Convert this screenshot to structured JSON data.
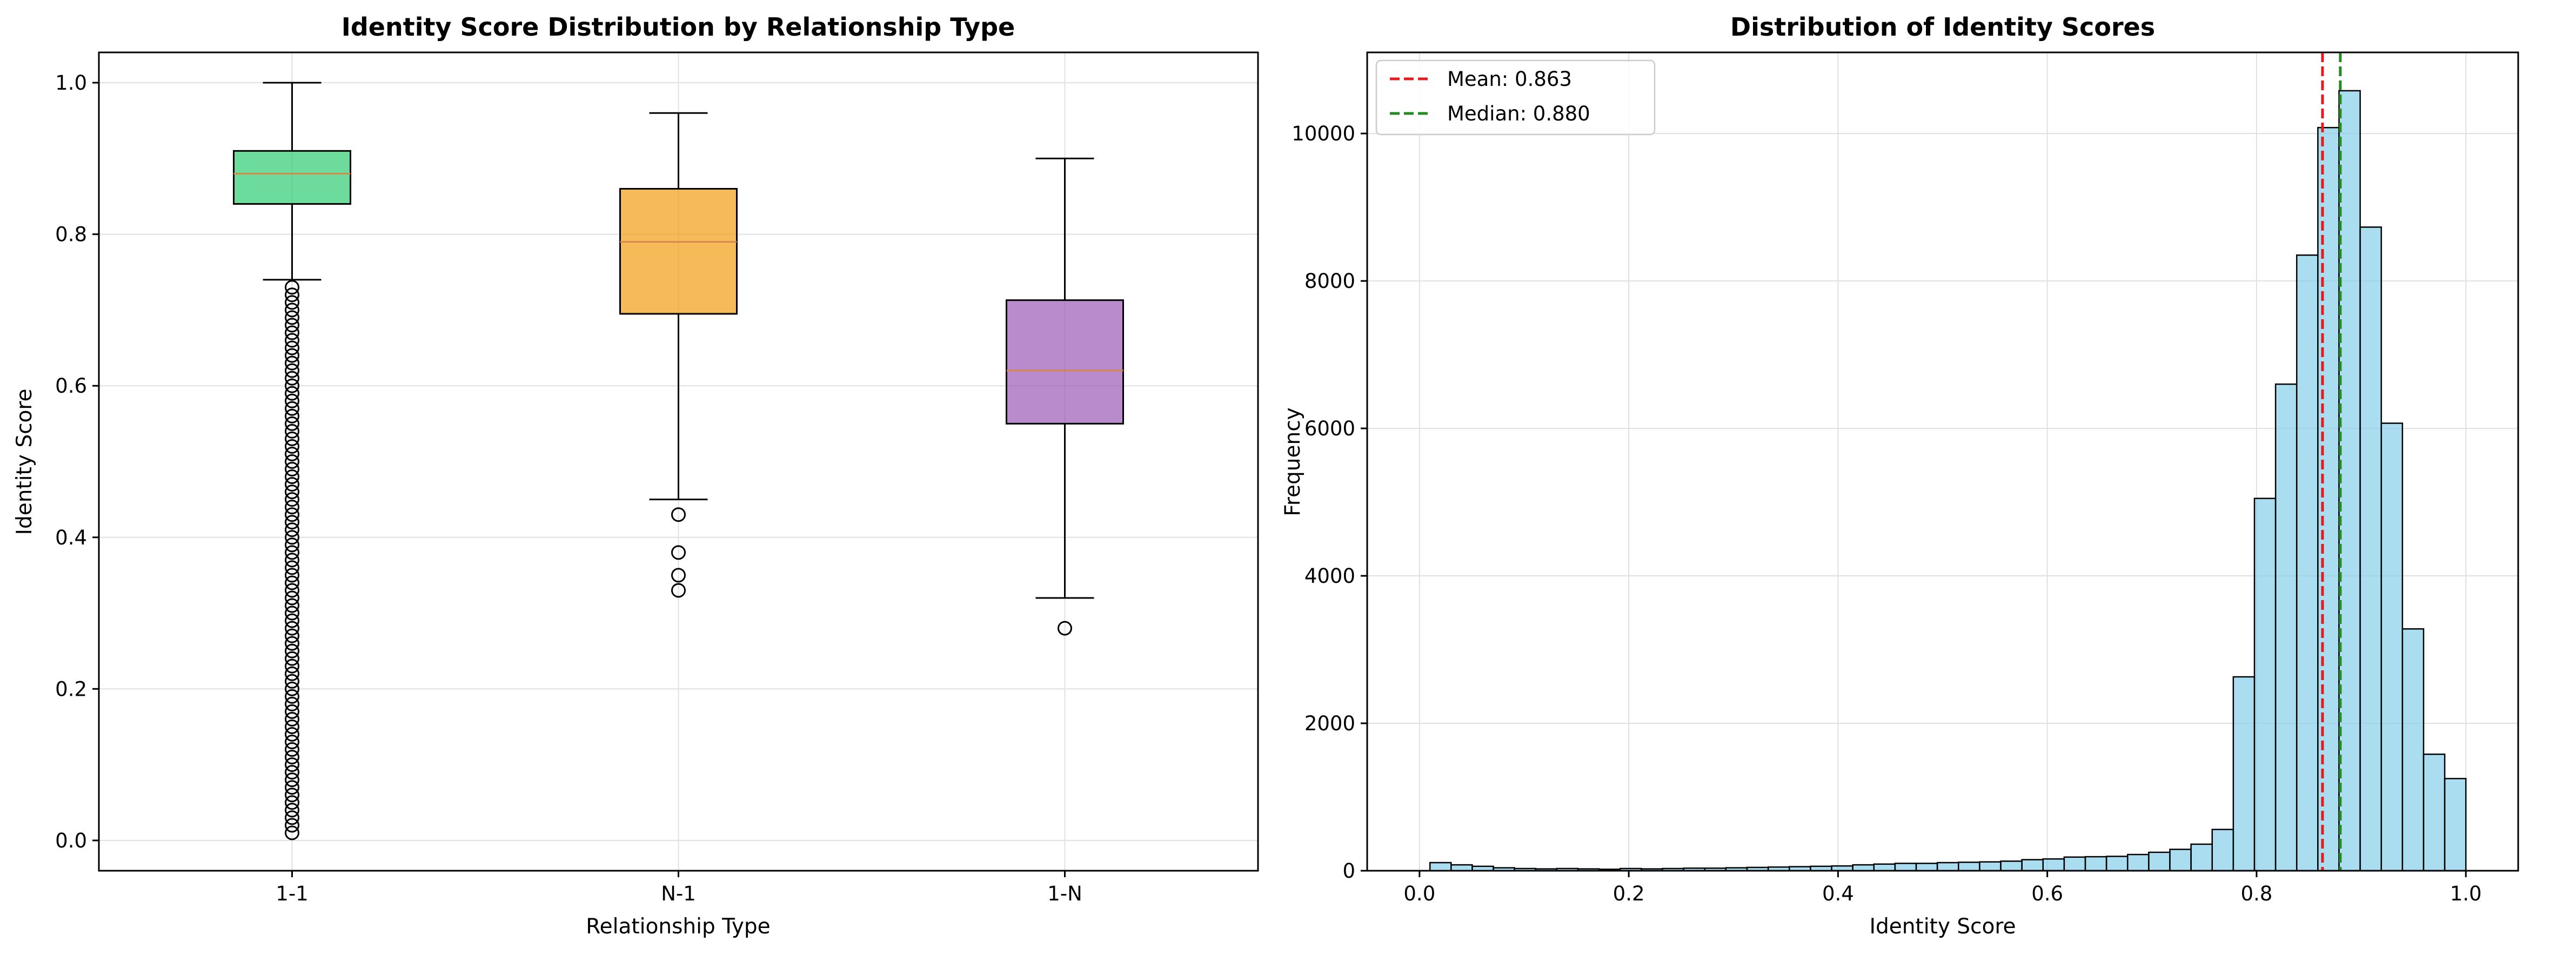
{
  "chart_data": [
    {
      "type": "box",
      "title": "Identity Score Distribution by Relationship Type",
      "xlabel": "Relationship Type",
      "ylabel": "Identity Score",
      "ylim": [
        -0.04,
        1.04
      ],
      "yticks": [
        "0.0",
        "0.2",
        "0.4",
        "0.6",
        "0.8",
        "1.0"
      ],
      "grid": true,
      "categories": [
        "1-1",
        "N-1",
        "1-N"
      ],
      "boxes": [
        {
          "name": "1-1",
          "whislo": 0.74,
          "q1": 0.84,
          "med": 0.88,
          "q3": 0.91,
          "whishi": 1.0,
          "color": "#2ecc71",
          "fliers": [
            0.01,
            0.02,
            0.03,
            0.04,
            0.05,
            0.06,
            0.07,
            0.08,
            0.09,
            0.1,
            0.11,
            0.12,
            0.13,
            0.14,
            0.15,
            0.16,
            0.17,
            0.18,
            0.19,
            0.2,
            0.21,
            0.22,
            0.23,
            0.24,
            0.25,
            0.26,
            0.27,
            0.28,
            0.29,
            0.3,
            0.31,
            0.32,
            0.33,
            0.34,
            0.35,
            0.36,
            0.37,
            0.38,
            0.39,
            0.4,
            0.41,
            0.42,
            0.43,
            0.44,
            0.45,
            0.46,
            0.47,
            0.48,
            0.49,
            0.5,
            0.51,
            0.52,
            0.53,
            0.54,
            0.55,
            0.56,
            0.57,
            0.58,
            0.59,
            0.6,
            0.61,
            0.62,
            0.63,
            0.64,
            0.65,
            0.66,
            0.67,
            0.68,
            0.69,
            0.7,
            0.71,
            0.72,
            0.73
          ]
        },
        {
          "name": "N-1",
          "whislo": 0.45,
          "q1": 0.695,
          "med": 0.79,
          "q3": 0.86,
          "whishi": 0.96,
          "color": "#f39c12",
          "fliers": [
            0.43,
            0.38,
            0.35,
            0.33
          ]
        },
        {
          "name": "1-N",
          "whislo": 0.32,
          "q1": 0.55,
          "med": 0.62,
          "q3": 0.713,
          "whishi": 0.9,
          "color": "#9b59b6",
          "fliers": [
            0.28
          ]
        }
      ]
    },
    {
      "type": "histogram",
      "title": "Distribution of Identity Scores",
      "xlabel": "Identity Score",
      "ylabel": "Frequency",
      "xlim": [
        -0.05,
        1.05
      ],
      "ylim": [
        0,
        11100
      ],
      "xticks": [
        "0.0",
        "0.2",
        "0.4",
        "0.6",
        "0.8",
        "1.0"
      ],
      "yticks": [
        "0",
        "2000",
        "4000",
        "6000",
        "8000",
        "10000"
      ],
      "grid": true,
      "bar_color": "#87ceeb",
      "bin_range": [
        0.01,
        1.0
      ],
      "counts": [
        110,
        80,
        60,
        40,
        30,
        25,
        30,
        25,
        20,
        30,
        25,
        30,
        35,
        35,
        40,
        45,
        50,
        55,
        60,
        65,
        80,
        90,
        100,
        100,
        110,
        115,
        120,
        130,
        150,
        160,
        185,
        190,
        195,
        220,
        250,
        290,
        360,
        560,
        2630,
        5050,
        6600,
        8350,
        10080,
        10580,
        8730,
        6070,
        3280,
        1580,
        1250
      ],
      "legend_position": "top-left",
      "reference_lines": [
        {
          "label": "Mean: 0.863",
          "value": 0.863,
          "color": "#e41a1c"
        },
        {
          "label": "Median: 0.880",
          "value": 0.88,
          "color": "#228b22"
        }
      ]
    }
  ]
}
